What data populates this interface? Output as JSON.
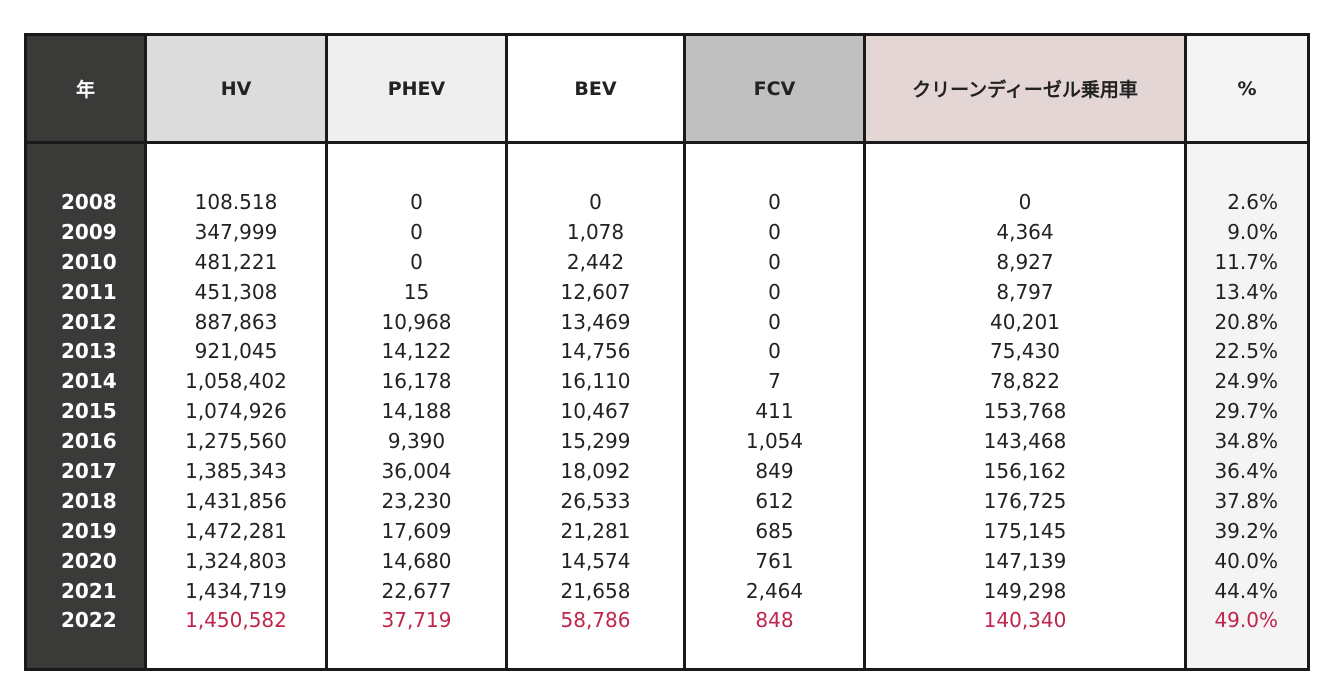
{
  "columns": [
    {
      "key": "year",
      "header": "年",
      "header_bg": "#3a3b39",
      "values": [
        "2008",
        "2009",
        "2010",
        "2011",
        "2012",
        "2013",
        "2014",
        "2015",
        "2016",
        "2017",
        "2018",
        "2019",
        "2020",
        "2021",
        "2022"
      ]
    },
    {
      "key": "hv",
      "header": "HV",
      "header_bg": "#dcdcdc",
      "values": [
        "108.518",
        "347,999",
        "481,221",
        "451,308",
        "887,863",
        "921,045",
        "1,058,402",
        "1,074,926",
        "1,275,560",
        "1,385,343",
        "1,431,856",
        "1,472,281",
        "1,324,803",
        "1,434,719",
        "1,450,582"
      ]
    },
    {
      "key": "phev",
      "header": "PHEV",
      "header_bg": "#efefef",
      "values": [
        "0",
        "0",
        "0",
        "15",
        "10,968",
        "14,122",
        "16,178",
        "14,188",
        "9,390",
        "36,004",
        "23,230",
        "17,609",
        "14,680",
        "22,677",
        "37,719"
      ]
    },
    {
      "key": "bev",
      "header": "BEV",
      "header_bg": "#ffffff",
      "values": [
        "0",
        "1,078",
        "2,442",
        "12,607",
        "13,469",
        "14,756",
        "16,110",
        "10,467",
        "15,299",
        "18,092",
        "26,533",
        "21,281",
        "14,574",
        "21,658",
        "58,786"
      ]
    },
    {
      "key": "fcv",
      "header": "FCV",
      "header_bg": "#c1c0c1",
      "values": [
        "0",
        "0",
        "0",
        "0",
        "0",
        "0",
        "7",
        "411",
        "1,054",
        "849",
        "612",
        "685",
        "761",
        "2,464",
        "848"
      ]
    },
    {
      "key": "cdv",
      "header": "クリーンディーゼル乗用車",
      "header_bg": "#e5d6d6",
      "values": [
        "0",
        "4,364",
        "8,927",
        "8,797",
        "40,201",
        "75,430",
        "78,822",
        "153,768",
        "143,468",
        "156,162",
        "176,725",
        "175,145",
        "147,139",
        "149,298",
        "140,340"
      ]
    },
    {
      "key": "pct",
      "header": "%",
      "header_bg": "#f4f4f4",
      "values": [
        "2.6%",
        "9.0%",
        "11.7%",
        "13.4%",
        "20.8%",
        "22.5%",
        "24.9%",
        "29.7%",
        "34.8%",
        "36.4%",
        "37.8%",
        "39.2%",
        "40.0%",
        "44.4%",
        "49.0%"
      ]
    }
  ],
  "highlight_color": "#c0254c",
  "highlight_row_index": 14
}
